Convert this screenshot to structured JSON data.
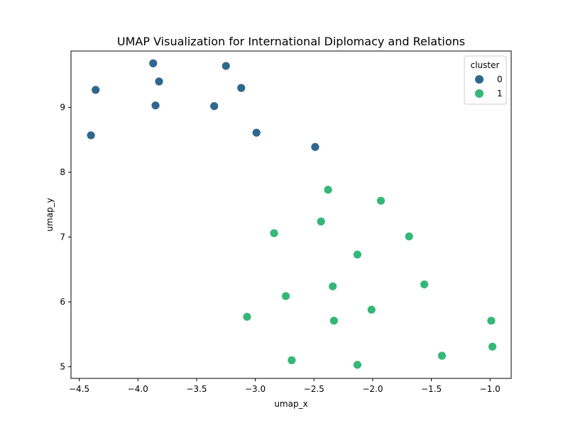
{
  "chart_data": {
    "type": "scatter",
    "title": "UMAP Visualization for International Diplomacy and Relations",
    "xlabel": "umap_x",
    "ylabel": "umap_y",
    "xlim": [
      -4.57,
      -0.82
    ],
    "ylim": [
      4.82,
      9.87
    ],
    "xticks": [
      -4.5,
      -4.0,
      -3.5,
      -3.0,
      -2.5,
      -2.0,
      -1.5,
      -1.0
    ],
    "xtick_labels": [
      "−4.5",
      "−4.0",
      "−3.5",
      "−3.0",
      "−2.5",
      "−2.0",
      "−1.5",
      "−1.0"
    ],
    "yticks": [
      5,
      6,
      7,
      8,
      9
    ],
    "ytick_labels": [
      "5",
      "6",
      "7",
      "8",
      "9"
    ],
    "grid": false,
    "legend": {
      "title": "cluster",
      "position": "top-right",
      "entries": [
        {
          "label": "0",
          "color": "#30678d"
        },
        {
          "label": "1",
          "color": "#35b778"
        }
      ]
    },
    "series": [
      {
        "name": "0",
        "color": "#30678d",
        "points": [
          {
            "x": -3.87,
            "y": 9.68
          },
          {
            "x": -3.25,
            "y": 9.64
          },
          {
            "x": -4.36,
            "y": 9.27
          },
          {
            "x": -3.82,
            "y": 9.4
          },
          {
            "x": -3.12,
            "y": 9.3
          },
          {
            "x": -3.85,
            "y": 9.03
          },
          {
            "x": -3.35,
            "y": 9.02
          },
          {
            "x": -4.4,
            "y": 8.57
          },
          {
            "x": -2.99,
            "y": 8.61
          },
          {
            "x": -2.49,
            "y": 8.39
          }
        ]
      },
      {
        "name": "1",
        "color": "#35b778",
        "points": [
          {
            "x": -2.38,
            "y": 7.73
          },
          {
            "x": -1.93,
            "y": 7.56
          },
          {
            "x": -2.44,
            "y": 7.24
          },
          {
            "x": -2.84,
            "y": 7.06
          },
          {
            "x": -1.69,
            "y": 7.01
          },
          {
            "x": -2.13,
            "y": 6.73
          },
          {
            "x": -1.56,
            "y": 6.27
          },
          {
            "x": -2.34,
            "y": 6.24
          },
          {
            "x": -2.74,
            "y": 6.09
          },
          {
            "x": -2.01,
            "y": 5.88
          },
          {
            "x": -3.07,
            "y": 5.77
          },
          {
            "x": -2.33,
            "y": 5.71
          },
          {
            "x": -0.99,
            "y": 5.71
          },
          {
            "x": -0.98,
            "y": 5.31
          },
          {
            "x": -1.41,
            "y": 5.17
          },
          {
            "x": -2.69,
            "y": 5.1
          },
          {
            "x": -2.13,
            "y": 5.03
          }
        ]
      }
    ]
  }
}
